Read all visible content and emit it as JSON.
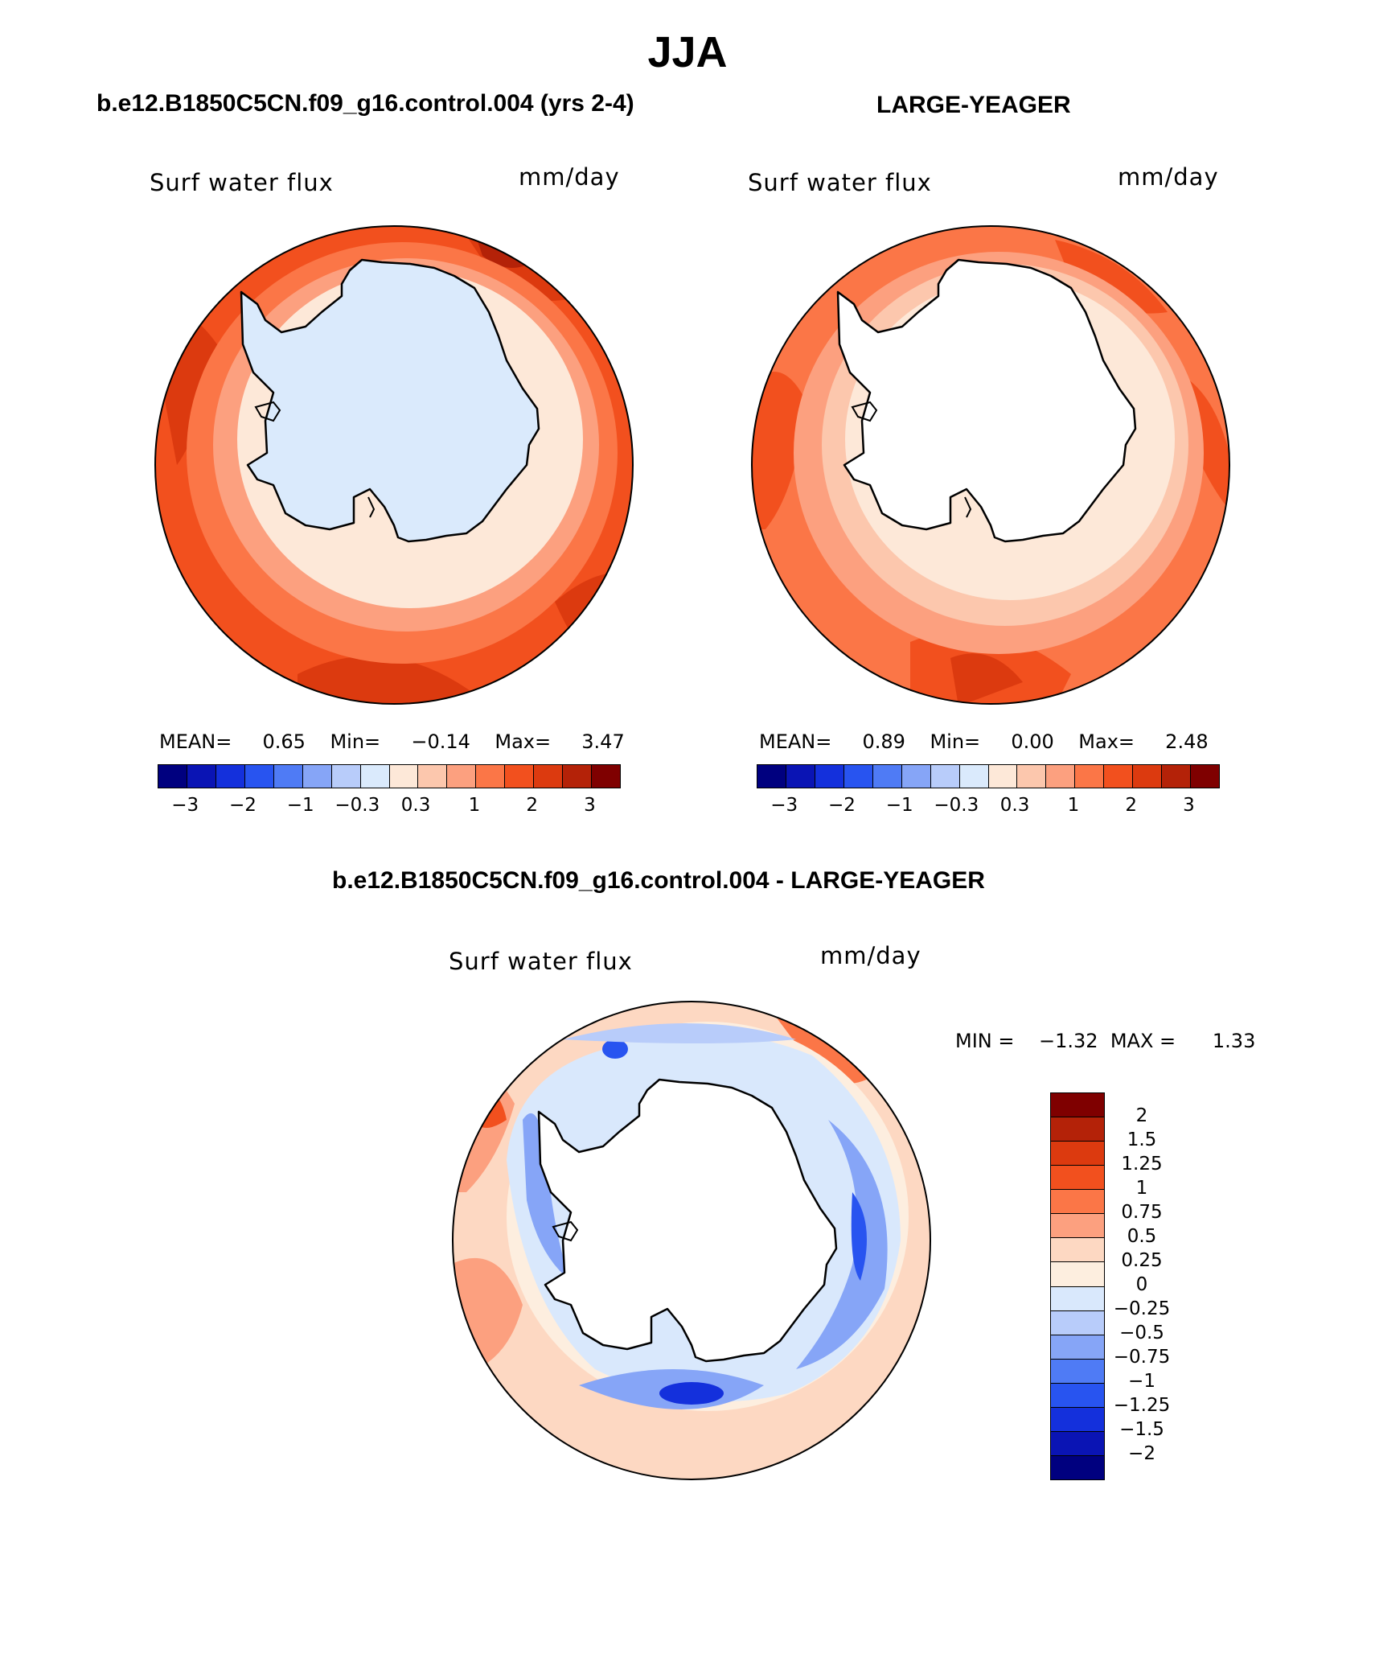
{
  "title": "JJA",
  "panels": [
    {
      "case_title": "b.e12.B1850C5CN.f09_g16.control.004 (yrs 2-4)",
      "variable": "Surf water flux",
      "units": "mm/day",
      "stats": {
        "mean_label": "MEAN=",
        "mean": "0.65",
        "min_label": "Min=",
        "min": "−0.14",
        "max_label": "Max=",
        "max": "3.47"
      }
    },
    {
      "case_title": "LARGE-YEAGER",
      "variable": "Surf water flux",
      "units": "mm/day",
      "stats": {
        "mean_label": "MEAN=",
        "mean": "0.89",
        "min_label": "Min=",
        "min": "0.00",
        "max_label": "Max=",
        "max": "2.48"
      }
    }
  ],
  "colorbar": {
    "colors": [
      "#00007f",
      "#0a14b4",
      "#1430dc",
      "#2854f0",
      "#4f7bf5",
      "#86a5f7",
      "#b8ccfa",
      "#daeafc",
      "#fde8d8",
      "#fcc7ad",
      "#fca07f",
      "#fb7647",
      "#f2501e",
      "#dc3a0f",
      "#b42208",
      "#7f0000"
    ],
    "tick_labels": [
      "−3",
      "−2",
      "−1",
      "−0.3",
      "0.3",
      "1",
      "2",
      "3"
    ]
  },
  "diff_panel": {
    "title": "b.e12.B1850C5CN.f09_g16.control.004 - LARGE-YEAGER",
    "variable": "Surf water flux",
    "units": "mm/day",
    "stats": {
      "min_label": "MIN =",
      "min": "−1.32",
      "max_label": "MAX =",
      "max": "1.33"
    },
    "colorbar_colors": [
      "#7f0000",
      "#b42208",
      "#dc3a0f",
      "#f2501e",
      "#fb7647",
      "#fca07f",
      "#fdd8c2",
      "#fdeedf",
      "#d9e8fc",
      "#b8ccfa",
      "#86a5f7",
      "#4f7bf5",
      "#2854f0",
      "#1430dc",
      "#0a14b4",
      "#00007f"
    ],
    "levels": [
      "2",
      "1.5",
      "1.25",
      "1",
      "0.75",
      "0.5",
      "0.25",
      "0",
      "−0.25",
      "−0.5",
      "−0.75",
      "−1",
      "−1.25",
      "−1.5",
      "−2"
    ]
  }
}
